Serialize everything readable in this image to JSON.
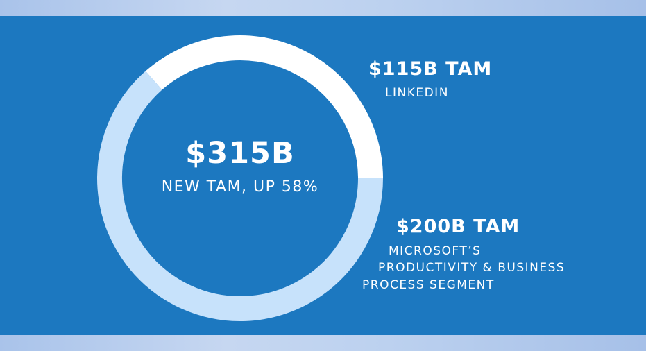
{
  "chart_data": {
    "type": "pie",
    "style": "donut",
    "center": {
      "value": "$315B",
      "subtitle": "NEW TAM, UP 58%"
    },
    "slices": [
      {
        "value": 115,
        "label": "$115B TAM",
        "description_lines": [
          "LINKEDIN"
        ],
        "color": "#ffffff"
      },
      {
        "value": 200,
        "label": "$200B TAM",
        "description_lines": [
          "MICROSOFT’S",
          "PRODUCTIVITY & BUSINESS",
          "PROCESS SEGMENT"
        ],
        "color": "#c7e2fb"
      }
    ]
  },
  "colors": {
    "panel_background": "#1c78c0",
    "band_background": "#b9cdea",
    "text": "#ffffff"
  }
}
